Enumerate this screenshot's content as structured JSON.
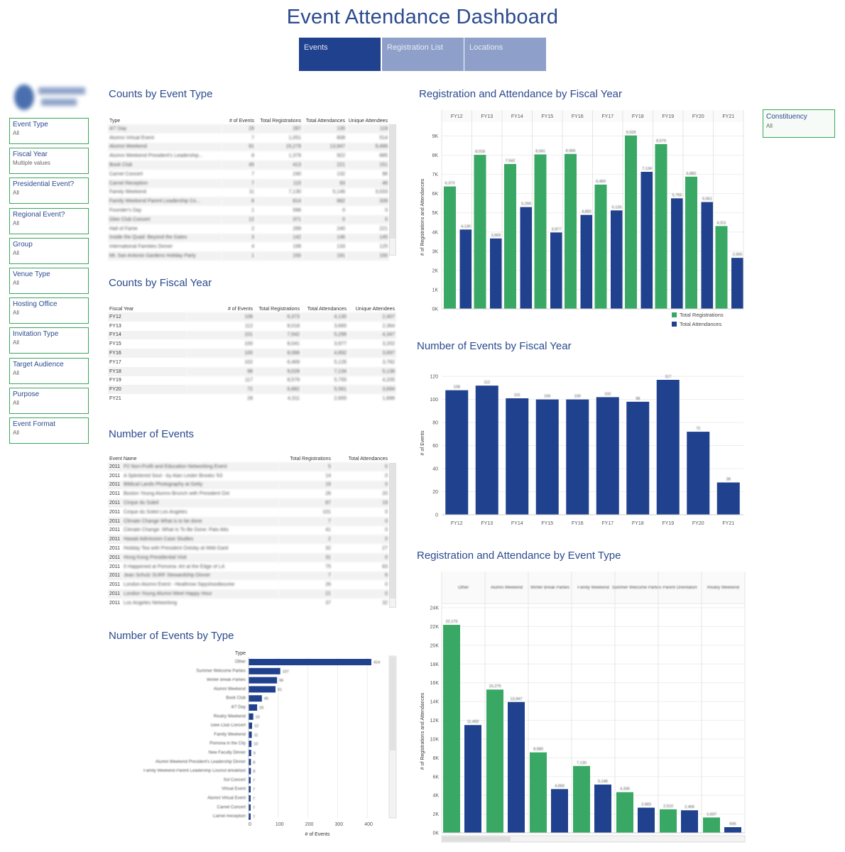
{
  "title": "Event Attendance Dashboard",
  "tabs": [
    {
      "label": "Events"
    },
    {
      "label": "Registration List"
    },
    {
      "label": "Locations"
    }
  ],
  "colors": {
    "green": "#3aa865",
    "blue": "#20418e",
    "title": "#2b4a8f"
  },
  "filters": [
    {
      "label": "Event Type",
      "value": "All"
    },
    {
      "label": "Fiscal Year",
      "value": "Multiple values"
    },
    {
      "label": "Presidential Event?",
      "value": "All"
    },
    {
      "label": "Regional Event?",
      "value": "All"
    },
    {
      "label": "Group",
      "value": "All"
    },
    {
      "label": "Venue Type",
      "value": "All"
    },
    {
      "label": "Hosting Office",
      "value": "All"
    },
    {
      "label": "Invitation Type",
      "value": "All"
    },
    {
      "label": "Target Audience",
      "value": "All"
    },
    {
      "label": "Purpose",
      "value": "All"
    },
    {
      "label": "Event Format",
      "value": "All"
    }
  ],
  "constituency": {
    "label": "Constituency",
    "value": "All"
  },
  "counts_by_type": {
    "title": "Counts by Event Type",
    "headers": [
      "Type",
      "# of Events",
      "Total Registrations",
      "Total Attendances",
      "Unique Attendees"
    ],
    "rows": [
      [
        "4/7 Day",
        "29",
        "287",
        "135",
        "119"
      ],
      [
        "Alumni Virtual Event",
        "7",
        "1,051",
        "608",
        "514"
      ],
      [
        "Alumni Weekend",
        "91",
        "15,279",
        "13,947",
        "9,466"
      ],
      [
        "Alumni Weekend President's Leadership...",
        "8",
        "1,379",
        "922",
        "885"
      ],
      [
        "Book Club",
        "45",
        "413",
        "221",
        "151"
      ],
      [
        "Carnel Concert",
        "7",
        "240",
        "132",
        "96"
      ],
      [
        "Carnel Reception",
        "7",
        "115",
        "93",
        "46"
      ],
      [
        "Family Weekend",
        "11",
        "7,130",
        "5,146",
        "3,033"
      ],
      [
        "Family Weekend Parent Leadership Co...",
        "8",
        "814",
        "682",
        "339"
      ],
      [
        "Founder's Day",
        "1",
        "596",
        "0",
        "0"
      ],
      [
        "Glee Club Concert",
        "12",
        "371",
        "0",
        "0"
      ],
      [
        "Hall of Fame",
        "2",
        "289",
        "240",
        "221"
      ],
      [
        "Inside the Quad: Beyond the Gates",
        "3",
        "142",
        "146",
        "145"
      ],
      [
        "International Families Dinner",
        "4",
        "199",
        "133",
        "125"
      ],
      [
        "Mt. San Antonio Gardens Holiday Party",
        "1",
        "150",
        "191",
        "150"
      ]
    ]
  },
  "counts_by_fy": {
    "title": "Counts by Fiscal Year",
    "headers": [
      "Fiscal Year",
      "# of Events",
      "Total Registrations",
      "Total Attendances",
      "Unique Attendees"
    ],
    "rows": [
      [
        "FY12",
        "108",
        "6,373",
        "4,130",
        "2,407"
      ],
      [
        "FY13",
        "112",
        "8,018",
        "3,665",
        "2,364"
      ],
      [
        "FY14",
        "101",
        "7,542",
        "5,299",
        "4,347"
      ],
      [
        "FY15",
        "100",
        "8,041",
        "3,977",
        "3,202"
      ],
      [
        "FY16",
        "100",
        "8,066",
        "4,892",
        "3,697"
      ],
      [
        "FY17",
        "102",
        "6,469",
        "5,126",
        "3,782"
      ],
      [
        "FY18",
        "98",
        "9,028",
        "7,134",
        "5,136"
      ],
      [
        "FY19",
        "117",
        "8,579",
        "5,755",
        "4,205"
      ],
      [
        "FY20",
        "72",
        "6,882",
        "5,561",
        "3,694"
      ],
      [
        "FY21",
        "28",
        "4,311",
        "2,655",
        "1,896"
      ]
    ]
  },
  "number_of_events": {
    "title": "Number of Events",
    "headers": [
      "Event Name",
      "Total Registrations",
      "Total Attendances"
    ],
    "rows": [
      [
        "2011",
        "P2 Non-Profit and Education Networking Event",
        "5",
        "0"
      ],
      [
        "2011",
        "A Splintered Soul - by Alan Lester Brooks '63",
        "14",
        "0"
      ],
      [
        "2011",
        "Biblical Lands Photography at Getty",
        "19",
        "0"
      ],
      [
        "2011",
        "Boston Young Alumni Brunch with President Oxt",
        "26",
        "20"
      ],
      [
        "2011",
        "Cirque du Soleil",
        "87",
        "19"
      ],
      [
        "2011",
        "Cirque du Soleil Los Angeles",
        "101",
        "0"
      ],
      [
        "2011",
        "Climate Change What is to be done",
        "7",
        "0"
      ],
      [
        "2011",
        "Climate Change: What Is To Be Done: Palo Alto",
        "41",
        "0"
      ],
      [
        "2011",
        "Hawaii Admission Case Studies",
        "2",
        "0"
      ],
      [
        "2011",
        "Holiday Tea with President Oxtoby at Wild Gard",
        "32",
        "27"
      ],
      [
        "2011",
        "Hong Kong Presidential Visit",
        "31",
        "0"
      ],
      [
        "2011",
        "It Happened at Pomona: Art at the Edge of LA",
        "75",
        "83"
      ],
      [
        "2011",
        "Jean Schulz SURF Stewardship Dinner",
        "7",
        "6"
      ],
      [
        "2011",
        "London Alumni Event - Heathrow Sipyshoolbouree",
        "26",
        "0"
      ],
      [
        "2011",
        "London Young Alumni Meet Happy Hour",
        "21",
        "0"
      ],
      [
        "2011",
        "Los Angeles Networking",
        "37",
        "32"
      ]
    ]
  },
  "events_by_type": {
    "title": "Number of Events by Type",
    "ylabel": "Type",
    "xlabel": "# of Events",
    "xticks": [
      "0",
      "100",
      "200",
      "300",
      "400"
    ]
  },
  "reg_by_fy": {
    "title": "Registration and Attendance  by Fiscal Year",
    "ylabel": "# of Registrations and Attendances",
    "yticks": [
      "0K",
      "1K",
      "2K",
      "3K",
      "4K",
      "5K",
      "6K",
      "7K",
      "8K",
      "9K"
    ],
    "legend": [
      "Total Registrations",
      "Total Attendances"
    ]
  },
  "events_by_fy": {
    "title": "Number of Events by Fiscal Year",
    "ylabel": "# of Events",
    "yticks": [
      "0",
      "20",
      "40",
      "60",
      "80",
      "100",
      "120"
    ]
  },
  "reg_by_type": {
    "title": "Registration and Attendance by Event Type",
    "ylabel": "# of Registrations and Attendances",
    "yticks": [
      "0K",
      "2K",
      "4K",
      "6K",
      "8K",
      "10K",
      "12K",
      "14K",
      "16K",
      "18K",
      "20K",
      "22K",
      "24K"
    ]
  },
  "chart_data": [
    {
      "type": "bar",
      "title": "Registration and Attendance  by Fiscal Year",
      "ylabel": "# of Registrations and Attendances",
      "categories": [
        "FY12",
        "FY13",
        "FY14",
        "FY15",
        "FY16",
        "FY17",
        "FY18",
        "FY19",
        "FY20",
        "FY21"
      ],
      "series": [
        {
          "name": "Total Registrations",
          "values": [
            6373,
            8018,
            7542,
            8041,
            8066,
            6469,
            9028,
            8579,
            6882,
            4311
          ]
        },
        {
          "name": "Total Attendances",
          "values": [
            4130,
            3665,
            5299,
            3977,
            4892,
            5126,
            7134,
            5755,
            5561,
            2655
          ]
        }
      ],
      "ylim": [
        0,
        9500
      ],
      "legend": "bottom-right"
    },
    {
      "type": "bar",
      "title": "Number of Events by Fiscal Year",
      "ylabel": "# of Events",
      "categories": [
        "FY12",
        "FY13",
        "FY14",
        "FY15",
        "FY16",
        "FY17",
        "FY18",
        "FY19",
        "FY20",
        "FY21"
      ],
      "values": [
        108,
        112,
        101,
        100,
        100,
        102,
        98,
        117,
        72,
        28
      ],
      "ylim": [
        0,
        125
      ]
    },
    {
      "type": "bar",
      "title": "Number of Events by Type",
      "xlabel": "# of Events",
      "ylabel": "Type",
      "orientation": "horizontal",
      "categories": [
        "Other",
        "Summer Welcome Parties",
        "Winter Break Parties",
        "Alumni Weekend",
        "Book Club",
        "4/7 Day",
        "Rivalry Weekend",
        "Glee Club Concert",
        "Family Weekend",
        "Pomona in the City",
        "New Faculty Dinner",
        "Alumni Weekend President's Leadership Dinner",
        "Family Weekend Parent Leadership Council Breakfast",
        "Sol Concert",
        "Virtual Event",
        "Alumni Virtual Event",
        "Carnel Concert",
        "Carnel Reception"
      ],
      "values": [
        414,
        107,
        96,
        91,
        45,
        29,
        16,
        12,
        11,
        10,
        9,
        8,
        8,
        7,
        7,
        7,
        7,
        7
      ],
      "xlim": [
        0,
        450
      ]
    },
    {
      "type": "bar",
      "title": "Registration and Attendance by Event Type",
      "ylabel": "# of Registrations and Attendances",
      "categories": [
        "Other",
        "Alumni Weekend",
        "Winter Break Parties",
        "Family Weekend",
        "Summer Welcome Parties",
        "Parent Orientation",
        "Rivalry Weekend"
      ],
      "series": [
        {
          "name": "Total Registrations",
          "values": [
            22179,
            15279,
            8580,
            7130,
            4336,
            2510,
            1637
          ]
        },
        {
          "name": "Total Attendances",
          "values": [
            11493,
            13947,
            4666,
            5146,
            2683,
            2406,
            606
          ]
        }
      ],
      "ylim": [
        0,
        24000
      ]
    }
  ]
}
